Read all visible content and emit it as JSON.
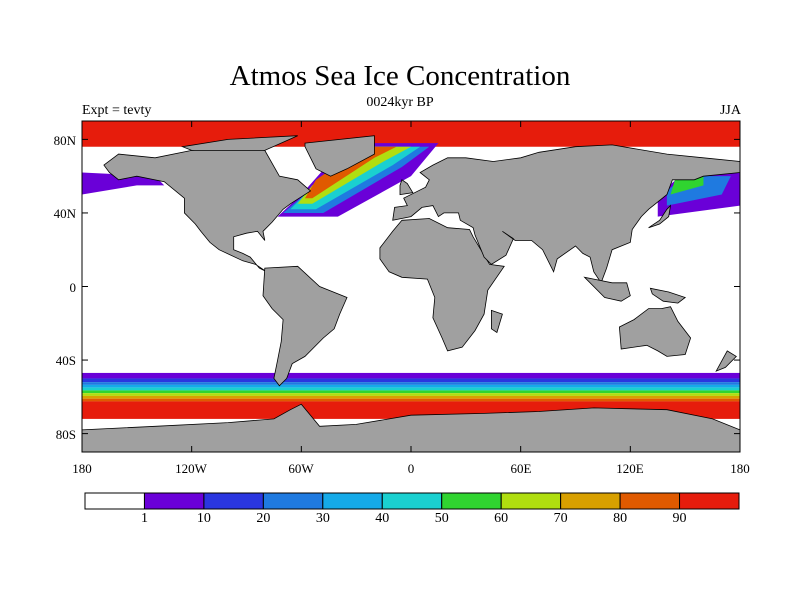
{
  "header": {
    "title": "Atmos Sea Ice Concentration",
    "subtitle": "0024kyr BP",
    "left_label": "Expt = tevty",
    "right_label": "JJA"
  },
  "axes": {
    "lat_ticks": [
      "80N",
      "40N",
      "0",
      "40S",
      "80S"
    ],
    "lon_ticks": [
      "180",
      "120W",
      "60W",
      "0",
      "60E",
      "120E",
      "180"
    ]
  },
  "colors": {
    "land": "#a0a0a0",
    "ocean": "#ffffff",
    "coast": "#000000",
    "levels": [
      "#ffffff",
      "#6a00d8",
      "#2a36e0",
      "#1f7ae0",
      "#15aae8",
      "#1ad0d0",
      "#30d430",
      "#b0de10",
      "#d8a000",
      "#e05a00",
      "#e61c0c"
    ]
  },
  "colorbar": {
    "labels": [
      "1",
      "10",
      "20",
      "30",
      "40",
      "50",
      "60",
      "70",
      "80",
      "90"
    ]
  }
}
